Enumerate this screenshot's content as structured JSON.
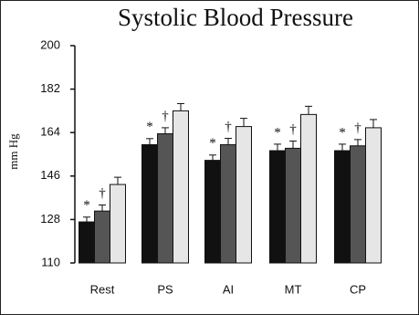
{
  "chart_data": {
    "type": "bar",
    "title": "Systolic Blood Pressure",
    "y_label": "mm Hg",
    "categories": [
      "Rest",
      "PS",
      "AI",
      "MT",
      "CP"
    ],
    "series": [
      {
        "color": "#111111",
        "values": [
          127,
          159,
          152.5,
          156.5,
          156.5
        ],
        "errors": [
          2,
          2.5,
          2.2,
          2.7,
          2.7
        ],
        "markers": [
          "*",
          "*",
          "*",
          "*",
          "*"
        ]
      },
      {
        "color": "#555555",
        "values": [
          131.5,
          163.5,
          159,
          157.5,
          158.5
        ],
        "errors": [
          2.5,
          2.5,
          2.6,
          3,
          2.6
        ],
        "markers": [
          "†",
          "†",
          "†",
          "†",
          "†"
        ]
      },
      {
        "color": "#e6e6e6",
        "values": [
          142.5,
          173,
          166.5,
          171.5,
          166
        ],
        "errors": [
          3,
          3,
          3.4,
          3.4,
          3.4
        ]
      }
    ],
    "ylim": [
      110,
      200
    ],
    "yticks": [
      110,
      128,
      146,
      164,
      182,
      200
    ]
  }
}
